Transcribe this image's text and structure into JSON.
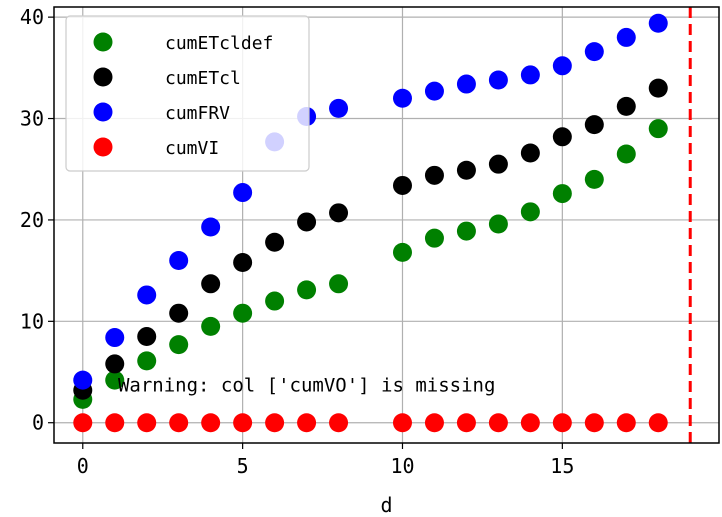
{
  "chart_data": {
    "type": "scatter",
    "xlabel": "d",
    "ylabel": "",
    "title": "",
    "xlim": [
      -0.9,
      19.9
    ],
    "ylim": [
      -2,
      41
    ],
    "xticks": [
      0,
      5,
      10,
      15
    ],
    "yticks": [
      0,
      10,
      20,
      30,
      40
    ],
    "grid": true,
    "legend_position": "top-left",
    "vline": {
      "x": 19,
      "color": "#ff0000",
      "style": "dashed"
    },
    "annotation": {
      "text": "Warning: col ['cumVO'] is missing",
      "x": 1.1,
      "y": 3.1
    },
    "series": [
      {
        "name": "cumETcldef",
        "color": "#008000",
        "x": [
          0,
          1,
          2,
          3,
          4,
          5,
          6,
          7,
          8,
          10,
          11,
          12,
          13,
          14,
          15,
          16,
          17,
          18
        ],
        "y": [
          2.3,
          4.2,
          6.1,
          7.7,
          9.5,
          10.8,
          12.0,
          13.1,
          13.7,
          16.8,
          18.2,
          18.9,
          19.6,
          20.8,
          22.6,
          24.0,
          26.5,
          29.0
        ]
      },
      {
        "name": "cumETcl",
        "color": "#000000",
        "x": [
          0,
          1,
          2,
          3,
          4,
          5,
          6,
          7,
          8,
          10,
          11,
          12,
          13,
          14,
          15,
          16,
          17,
          18
        ],
        "y": [
          3.2,
          5.8,
          8.5,
          10.8,
          13.7,
          15.8,
          17.8,
          19.8,
          20.7,
          23.4,
          24.4,
          24.9,
          25.5,
          26.6,
          28.2,
          29.4,
          31.2,
          33.0
        ]
      },
      {
        "name": "cumFRV",
        "color": "#0000ff",
        "x": [
          0,
          1,
          2,
          3,
          4,
          5,
          6,
          7,
          8,
          10,
          11,
          12,
          13,
          14,
          15,
          16,
          17,
          18
        ],
        "y": [
          4.2,
          8.4,
          12.6,
          16.0,
          19.3,
          22.7,
          27.7,
          30.2,
          31.0,
          32.0,
          32.7,
          33.4,
          33.8,
          34.3,
          35.2,
          36.6,
          38.0,
          39.4
        ]
      },
      {
        "name": "cumVI",
        "color": "#ff0000",
        "x": [
          0,
          1,
          2,
          3,
          4,
          5,
          6,
          7,
          8,
          10,
          11,
          12,
          13,
          14,
          15,
          16,
          17,
          18
        ],
        "y": [
          0,
          0,
          0,
          0,
          0,
          0,
          0,
          0,
          0,
          0,
          0,
          0,
          0,
          0,
          0,
          0,
          0,
          0
        ]
      }
    ]
  }
}
